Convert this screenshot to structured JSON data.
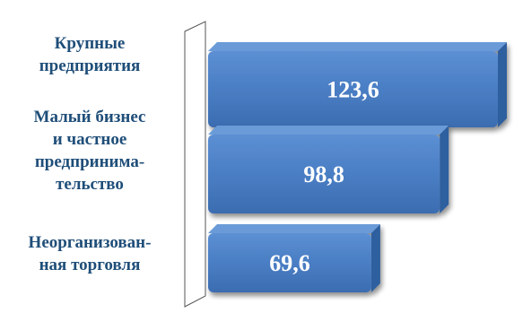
{
  "chart_data": {
    "type": "bar",
    "orientation": "horizontal",
    "style": "3d",
    "categories": [
      [
        "Крупные",
        "предприятия"
      ],
      [
        "Малый бизнес",
        "и частное",
        "предпринима-",
        "тельство"
      ],
      [
        "Неорганизован-",
        "ная торговля"
      ]
    ],
    "values": [
      123.6,
      98.8,
      69.6
    ],
    "data_labels": [
      "123,6",
      "98,8",
      "69,6"
    ],
    "title": "",
    "xlabel": "",
    "ylabel": "",
    "grid": false,
    "legend": "none",
    "colors": {
      "bar": "#4a7ec4",
      "bar_top": "#6b9bd8",
      "bar_side": "#2f5f9e",
      "label_text": "#ffffff",
      "category_text": "#1f4e79",
      "wall": "#ffffff",
      "wall_edge": "#555555"
    }
  }
}
